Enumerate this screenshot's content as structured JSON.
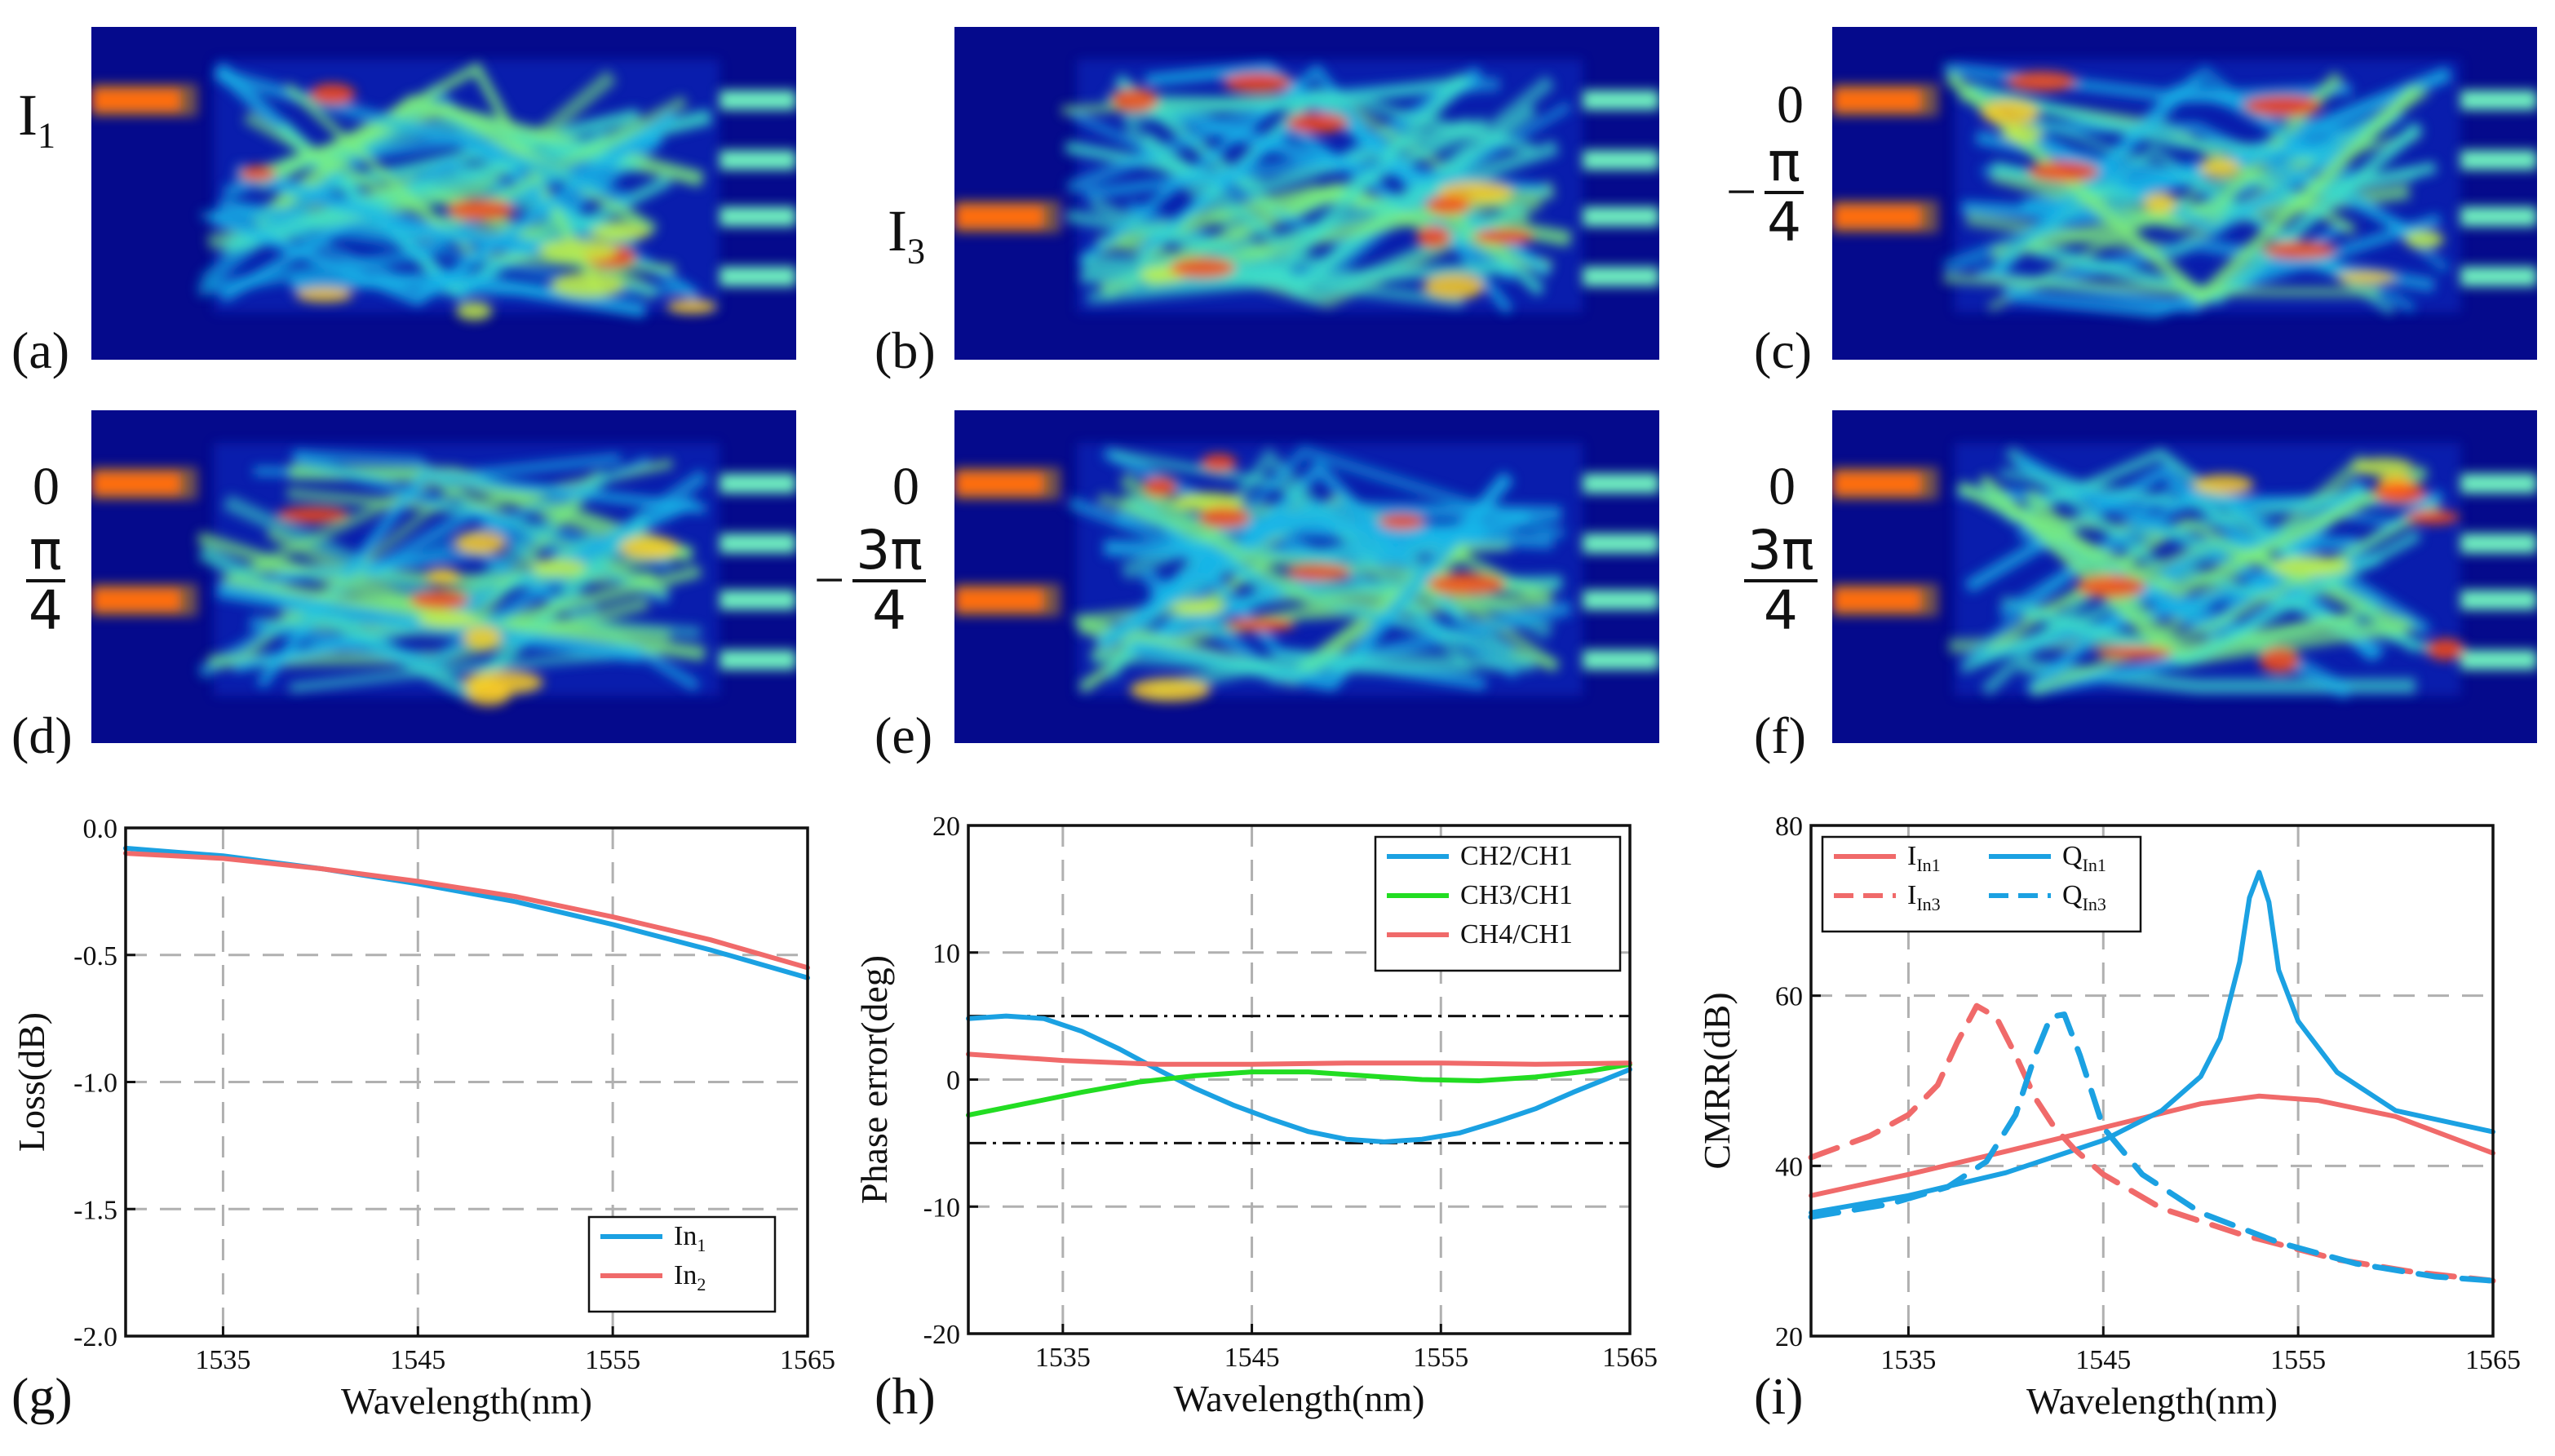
{
  "panel_labels": [
    "(a)",
    "(b)",
    "(c)",
    "(d)",
    "(e)",
    "(f)",
    "(g)",
    "(h)",
    "(i)"
  ],
  "field_labels": {
    "a_port": "I",
    "a_sub": "1",
    "b_port": "I",
    "b_sub": "3",
    "c_top": "0",
    "c_sign": "−",
    "c_num": "π",
    "c_den": "4",
    "d_top": "0",
    "d_num": "π",
    "d_den": "4",
    "e_top": "0",
    "e_sign": "−",
    "e_num": "3π",
    "e_den": "4",
    "f_top": "0",
    "f_num": "3π",
    "f_den": "4"
  },
  "colors": {
    "blue": "#1ba1e2",
    "red": "#f06a6a",
    "green": "#22dd22",
    "field_bg": "#050a8c"
  },
  "chart_data": [
    {
      "id": "g",
      "type": "line",
      "xlabel": "Wavelength(nm)",
      "ylabel": "Loss(dB)",
      "xlim": [
        1530,
        1565
      ],
      "ylim": [
        -2.0,
        0.0
      ],
      "xticks": [
        1535,
        1545,
        1555,
        1565
      ],
      "xtick_labels": [
        "1535",
        "1545",
        "1555",
        "1565"
      ],
      "yticks": [
        -2.0,
        -1.5,
        -1.0,
        -0.5,
        0.0
      ],
      "ytick_labels": [
        "-2.0",
        "-1.5",
        "-1.0",
        "-0.5",
        "0.0"
      ],
      "grid": true,
      "legend_position": "bottom-right",
      "series": [
        {
          "name": "In",
          "sub": "1",
          "color": "#1ba1e2",
          "dash": "solid",
          "x": [
            1530,
            1535,
            1540,
            1545,
            1550,
            1555,
            1560,
            1565
          ],
          "y": [
            -0.08,
            -0.11,
            -0.16,
            -0.22,
            -0.29,
            -0.38,
            -0.48,
            -0.59
          ]
        },
        {
          "name": "In",
          "sub": "2",
          "color": "#f06a6a",
          "dash": "solid",
          "x": [
            1530,
            1535,
            1540,
            1545,
            1550,
            1555,
            1560,
            1565
          ],
          "y": [
            -0.1,
            -0.12,
            -0.16,
            -0.21,
            -0.27,
            -0.35,
            -0.44,
            -0.55
          ]
        }
      ]
    },
    {
      "id": "h",
      "type": "line",
      "xlabel": "Wavelength(nm)",
      "ylabel": "Phase error(deg)",
      "xlim": [
        1530,
        1565
      ],
      "ylim": [
        -20,
        20
      ],
      "xticks": [
        1535,
        1545,
        1555,
        1565
      ],
      "xtick_labels": [
        "1535",
        "1545",
        "1555",
        "1565"
      ],
      "yticks": [
        -20,
        -10,
        0,
        10,
        20
      ],
      "ytick_labels": [
        "-20",
        "-10",
        "0",
        "10",
        "20"
      ],
      "grid": true,
      "legend_position": "top-right",
      "reference_lines": [
        5,
        -5
      ],
      "series": [
        {
          "name": "CH2/CH1",
          "color": "#1ba1e2",
          "dash": "solid",
          "x": [
            1530,
            1532,
            1534,
            1536,
            1538,
            1540,
            1542,
            1544,
            1546,
            1548,
            1550,
            1552,
            1554,
            1556,
            1558,
            1560,
            1562,
            1565
          ],
          "y": [
            4.8,
            5.0,
            4.8,
            3.8,
            2.4,
            0.8,
            -0.7,
            -2.0,
            -3.1,
            -4.1,
            -4.7,
            -4.9,
            -4.7,
            -4.2,
            -3.3,
            -2.3,
            -1.0,
            0.8
          ]
        },
        {
          "name": "CH3/CH1",
          "color": "#22dd22",
          "dash": "solid",
          "x": [
            1530,
            1533,
            1536,
            1539,
            1542,
            1545,
            1548,
            1551,
            1554,
            1557,
            1560,
            1563,
            1565
          ],
          "y": [
            -2.8,
            -1.9,
            -1.0,
            -0.2,
            0.3,
            0.6,
            0.6,
            0.3,
            0.0,
            -0.1,
            0.2,
            0.7,
            1.2
          ]
        },
        {
          "name": "CH4/CH1",
          "color": "#f06a6a",
          "dash": "solid",
          "x": [
            1530,
            1535,
            1540,
            1545,
            1550,
            1555,
            1560,
            1565
          ],
          "y": [
            2.0,
            1.5,
            1.2,
            1.2,
            1.3,
            1.3,
            1.2,
            1.3
          ]
        }
      ]
    },
    {
      "id": "i",
      "type": "line",
      "xlabel": "Wavelength(nm)",
      "ylabel": "CMRR(dB)",
      "xlim": [
        1530,
        1565
      ],
      "ylim": [
        20,
        80
      ],
      "xticks": [
        1535,
        1545,
        1555,
        1565
      ],
      "xtick_labels": [
        "1535",
        "1545",
        "1555",
        "1565"
      ],
      "yticks": [
        20,
        40,
        60,
        80
      ],
      "ytick_labels": [
        "20",
        "40",
        "60",
        "80"
      ],
      "grid": true,
      "legend_position": "top-left",
      "series": [
        {
          "name": "I",
          "sub": "In1",
          "color": "#f06a6a",
          "dash": "solid",
          "x": [
            1530,
            1535,
            1540,
            1545,
            1550,
            1553,
            1556,
            1560,
            1565
          ],
          "y": [
            36.5,
            39.0,
            41.7,
            44.5,
            47.3,
            48.2,
            47.7,
            45.8,
            41.5
          ]
        },
        {
          "name": "Q",
          "sub": "In1",
          "color": "#1ba1e2",
          "dash": "solid",
          "x": [
            1530,
            1535,
            1540,
            1545,
            1548,
            1550,
            1551,
            1552,
            1552.5,
            1553,
            1553.5,
            1554,
            1555,
            1557,
            1560,
            1565
          ],
          "y": [
            34.5,
            36.5,
            39.2,
            43.0,
            46.5,
            50.5,
            55.0,
            64.0,
            71.5,
            74.5,
            71.0,
            63.0,
            57.0,
            51.0,
            46.5,
            44.0
          ]
        },
        {
          "name": "I",
          "sub": "In3",
          "color": "#f06a6a",
          "dash": "dashed",
          "x": [
            1530,
            1533,
            1535,
            1536.5,
            1537.5,
            1538.5,
            1539.5,
            1540.5,
            1541.5,
            1542.5,
            1543.5,
            1545,
            1548,
            1552,
            1557,
            1561,
            1565
          ],
          "y": [
            41.0,
            43.5,
            46.0,
            49.5,
            54.5,
            58.8,
            57.5,
            53.0,
            48.0,
            44.5,
            42.0,
            39.0,
            35.0,
            32.0,
            29.0,
            27.5,
            26.5
          ]
        },
        {
          "name": "Q",
          "sub": "In3",
          "color": "#1ba1e2",
          "dash": "dashed",
          "x": [
            1530,
            1534,
            1537,
            1539,
            1540.5,
            1541.5,
            1542.3,
            1543,
            1543.8,
            1545,
            1547,
            1550,
            1554,
            1558,
            1562,
            1565
          ],
          "y": [
            34.0,
            35.5,
            37.5,
            40.5,
            46.0,
            53.0,
            57.5,
            57.8,
            53.0,
            44.5,
            39.0,
            34.5,
            31.0,
            28.5,
            27.0,
            26.5
          ]
        }
      ]
    }
  ]
}
